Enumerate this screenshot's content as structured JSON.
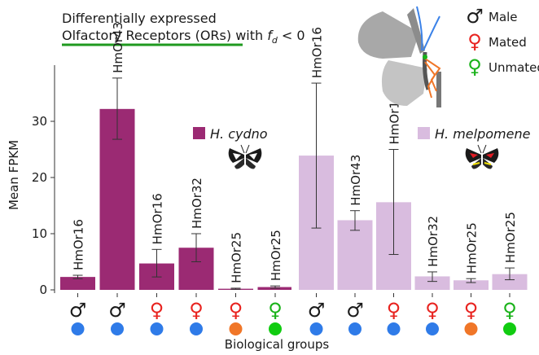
{
  "title_line1": "Differentially expressed",
  "title_line2_main": "Olfactory Receptors (ORs) with ",
  "title_fd_symbol": "f",
  "title_fd_sub": "d",
  "title_fd_cond": " < 0",
  "legend": {
    "items": [
      {
        "symbol": "♂",
        "label": "Male",
        "color": "#1a1a1a"
      },
      {
        "symbol": "♀",
        "label": "Mated",
        "color": "#e8231f"
      },
      {
        "symbol": "♀",
        "label": "Unmated",
        "color": "#19b219"
      }
    ]
  },
  "chart_data": [
    {
      "type": "bar",
      "species": "H. cydno",
      "color": "#9b2a73",
      "categories": [
        "HmOr16",
        "HmOr43",
        "HmOr16",
        "HmOr32",
        "HmOr25",
        "HmOr25"
      ],
      "values": [
        2.3,
        32.2,
        4.7,
        7.5,
        0.2,
        0.5
      ],
      "err_low": [
        2.0,
        26.8,
        2.3,
        5.0,
        0.1,
        0.3
      ],
      "err_high": [
        2.6,
        37.7,
        7.2,
        10.0,
        0.3,
        0.7
      ],
      "groups": [
        {
          "symbol": "♂",
          "sex_color": "#1a1a1a",
          "dot_color": "#2f7be8"
        },
        {
          "symbol": "♂",
          "sex_color": "#1a1a1a",
          "dot_color": "#2f7be8"
        },
        {
          "symbol": "♀",
          "sex_color": "#e8231f",
          "dot_color": "#2f7be8"
        },
        {
          "symbol": "♀",
          "sex_color": "#e8231f",
          "dot_color": "#2f7be8"
        },
        {
          "symbol": "♀",
          "sex_color": "#e8231f",
          "dot_color": "#f07628"
        },
        {
          "symbol": "♀",
          "sex_color": "#19b219",
          "dot_color": "#11cc11"
        }
      ],
      "ylim": [
        0,
        40
      ],
      "yticks": [
        0,
        10,
        20,
        30
      ]
    },
    {
      "type": "bar",
      "species": "H. melpomene",
      "color": "#d9bcdf",
      "categories": [
        "HmOr16",
        "HmOr43",
        "HmOr16",
        "HmOr32",
        "HmOr25",
        "HmOr25"
      ],
      "values": [
        23.9,
        12.4,
        15.6,
        2.4,
        1.7,
        2.8
      ],
      "err_low": [
        11.0,
        10.6,
        6.3,
        1.5,
        1.3,
        1.8
      ],
      "err_high": [
        36.8,
        14.1,
        25.0,
        3.2,
        2.0,
        3.9
      ],
      "groups": [
        {
          "symbol": "♂",
          "sex_color": "#1a1a1a",
          "dot_color": "#2f7be8"
        },
        {
          "symbol": "♂",
          "sex_color": "#1a1a1a",
          "dot_color": "#2f7be8"
        },
        {
          "symbol": "♀",
          "sex_color": "#e8231f",
          "dot_color": "#2f7be8"
        },
        {
          "symbol": "♀",
          "sex_color": "#e8231f",
          "dot_color": "#2f7be8"
        },
        {
          "symbol": "♀",
          "sex_color": "#e8231f",
          "dot_color": "#f07628"
        },
        {
          "symbol": "♀",
          "sex_color": "#19b219",
          "dot_color": "#11cc11"
        }
      ],
      "ylim": [
        0,
        40
      ]
    }
  ],
  "ylabel": "Mean FPKM",
  "xlabel": "Biological groups",
  "title_underline_color": "#1f9a1f",
  "grid": false
}
